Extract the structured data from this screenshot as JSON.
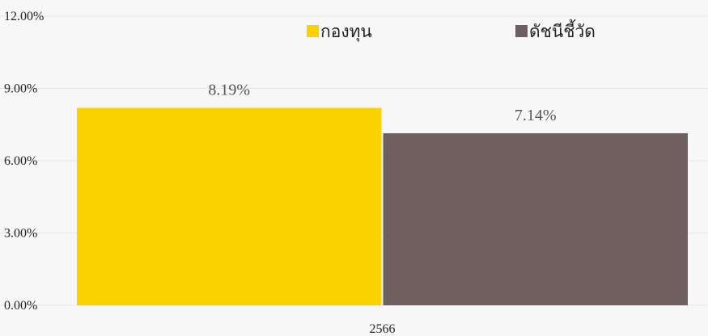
{
  "chart_data": {
    "type": "bar",
    "categories": [
      "2566"
    ],
    "series": [
      {
        "name": "กองทุน",
        "values": [
          8.19
        ],
        "color": "#FAD201",
        "label": "8.19%"
      },
      {
        "name": "ดัชนีชี้วัด",
        "values": [
          7.14
        ],
        "color": "#705F5F",
        "label": "7.14%"
      }
    ],
    "y_ticks": [
      "0.00%",
      "3.00%",
      "6.00%",
      "9.00%",
      "12.00%"
    ],
    "ylim": [
      0,
      12
    ],
    "y_tick_values": [
      0,
      3,
      6,
      9,
      12
    ],
    "grid": true,
    "legend": {
      "position": "top",
      "marker": "■"
    },
    "title": "",
    "xlabel": "",
    "ylabel": ""
  }
}
